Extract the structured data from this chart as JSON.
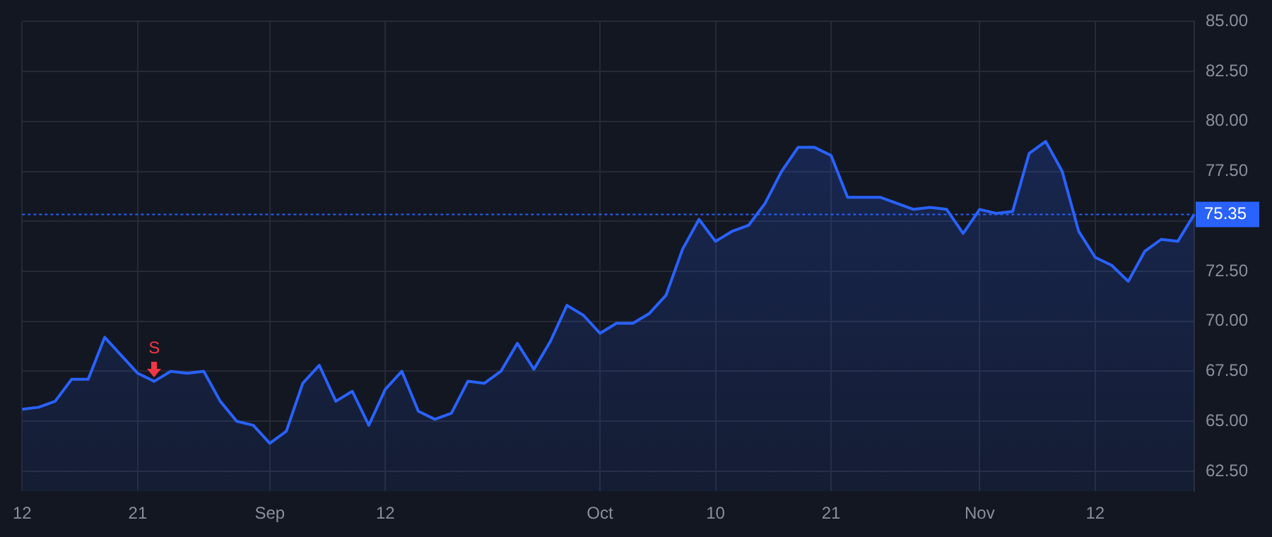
{
  "chart_data": {
    "type": "area",
    "categories": [
      "12",
      null,
      null,
      null,
      null,
      null,
      null,
      "21",
      null,
      null,
      null,
      null,
      null,
      null,
      null,
      "Sep",
      null,
      null,
      null,
      null,
      null,
      null,
      "12",
      null,
      null,
      null,
      null,
      null,
      null,
      null,
      null,
      null,
      null,
      null,
      null,
      "Oct",
      null,
      null,
      null,
      null,
      null,
      null,
      "10",
      null,
      null,
      null,
      null,
      null,
      null,
      "21",
      null,
      null,
      null,
      null,
      null,
      null,
      null,
      null,
      "Nov",
      null,
      null,
      null,
      null,
      null,
      null,
      "12",
      null,
      null,
      null,
      null,
      null,
      null
    ],
    "series": [
      {
        "color": "#2962ff",
        "values": [
          65.6,
          65.7,
          66.0,
          67.1,
          67.1,
          69.2,
          68.3,
          67.4,
          67.0,
          67.5,
          67.4,
          67.5,
          66.0,
          65.0,
          64.8,
          63.9,
          64.5,
          66.9,
          67.8,
          66.0,
          66.5,
          64.8,
          66.6,
          67.5,
          65.5,
          65.1,
          65.4,
          67.0,
          66.9,
          67.5,
          68.9,
          67.6,
          69.0,
          70.8,
          70.3,
          69.4,
          69.9,
          69.9,
          70.4,
          71.3,
          73.6,
          75.1,
          74.0,
          74.5,
          74.8,
          75.9,
          77.5,
          78.7,
          78.7,
          78.3,
          76.2,
          76.2,
          76.2,
          75.9,
          75.6,
          75.7,
          75.6,
          74.4,
          75.6,
          75.4,
          75.5,
          78.4,
          79.0,
          77.5,
          74.5,
          73.2,
          72.8,
          72.0,
          73.5,
          74.1,
          74.0,
          75.35
        ]
      }
    ],
    "ylim": [
      61.5,
      85
    ],
    "yticks": [
      {
        "value": 62.5,
        "label": "62.50"
      },
      {
        "value": 65,
        "label": "65.00"
      },
      {
        "value": 67.5,
        "label": "67.50"
      },
      {
        "value": 70,
        "label": "70.00"
      },
      {
        "value": 72.5,
        "label": "72.50"
      },
      {
        "value": 75,
        "label": null
      },
      {
        "value": 77.5,
        "label": "77.50"
      },
      {
        "value": 80,
        "label": "80.00"
      },
      {
        "value": 82.5,
        "label": "82.50"
      },
      {
        "value": 85,
        "label": "85.00"
      }
    ],
    "ref_lines": [
      {
        "axis": "y",
        "value": 75.35,
        "label": "75.35",
        "color": "#2962ff",
        "line_style": "dotted"
      }
    ],
    "annotations": [
      {
        "text": "S",
        "y": 67.0
      }
    ],
    "grid": true,
    "legend": false,
    "marker": "none",
    "line_style": "solid"
  }
}
